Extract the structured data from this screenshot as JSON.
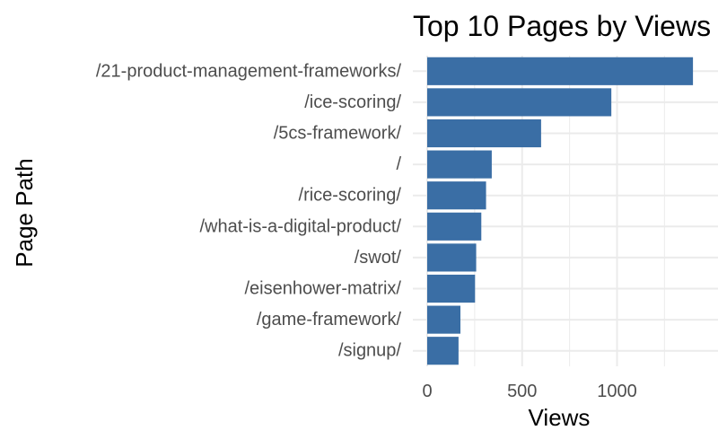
{
  "chart_data": {
    "type": "bar",
    "orientation": "horizontal",
    "title": "Top 10 Pages by Views",
    "xlabel": "Views",
    "ylabel": "Page Path",
    "categories": [
      "/21-product-management-frameworks/",
      "/ice-scoring/",
      "/5cs-framework/",
      "/",
      "/rice-scoring/",
      "/what-is-a-digital-product/",
      "/swot/",
      "/eisenhower-matrix/",
      "/game-framework/",
      "/signup/"
    ],
    "values": [
      1400,
      970,
      600,
      340,
      310,
      285,
      258,
      252,
      175,
      165
    ],
    "xlim": [
      0,
      1450
    ],
    "xticks": [
      0,
      500,
      1000
    ],
    "xtick_labels": [
      "0",
      "500",
      "1000"
    ],
    "grid": true,
    "legend": "none",
    "bar_color": "#3A6EA5",
    "grid_color": "#EBEBEB"
  }
}
